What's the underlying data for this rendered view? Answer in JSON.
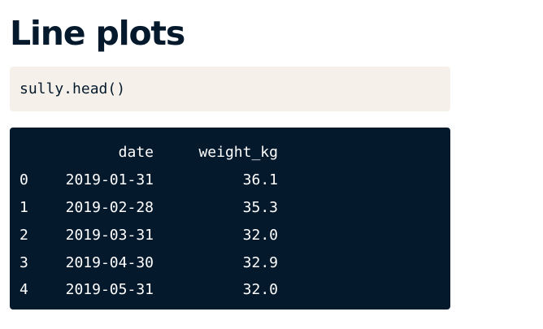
{
  "page": {
    "title": "Line plots"
  },
  "code_cell": {
    "code": "sully.head()"
  },
  "output": {
    "columns": [
      "",
      "date",
      "weight_kg"
    ],
    "rows": [
      {
        "index": "0",
        "date": "2019-01-31",
        "weight_kg": "36.1"
      },
      {
        "index": "1",
        "date": "2019-02-28",
        "weight_kg": "35.3"
      },
      {
        "index": "2",
        "date": "2019-03-31",
        "weight_kg": "32.0"
      },
      {
        "index": "3",
        "date": "2019-04-30",
        "weight_kg": "32.9"
      },
      {
        "index": "4",
        "date": "2019-05-31",
        "weight_kg": "32.0"
      }
    ]
  },
  "colors": {
    "title_text": "#05192d",
    "code_background": "#f5f1ea",
    "output_background": "#05192d",
    "output_text": "#ffffff"
  }
}
